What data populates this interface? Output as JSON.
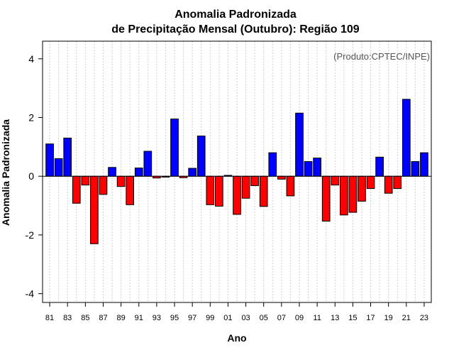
{
  "chart_data": {
    "type": "bar",
    "title": "Anomalia Padronizada",
    "subtitle": "de Precipitação Mensal (Outubro): Região 109",
    "xlabel": "Ano",
    "ylabel": "Anomalia Padronizada",
    "credit": "(Produto:CPTEC/INPE)",
    "ylim": [
      -4.3,
      4.6
    ],
    "yticks": [
      -4,
      -2,
      0,
      2,
      4
    ],
    "ytick_labels": [
      "-4",
      "-2",
      "0",
      "2",
      "4"
    ],
    "xtick_labels": [
      "81",
      "83",
      "85",
      "87",
      "89",
      "91",
      "93",
      "95",
      "97",
      "99",
      "01",
      "03",
      "05",
      "07",
      "09",
      "11",
      "13",
      "15",
      "17",
      "19",
      "21",
      "23"
    ],
    "grid": true,
    "categories": [
      "1981",
      "1982",
      "1983",
      "1984",
      "1985",
      "1986",
      "1987",
      "1988",
      "1989",
      "1990",
      "1991",
      "1992",
      "1993",
      "1994",
      "1995",
      "1996",
      "1997",
      "1998",
      "1999",
      "2000",
      "2001",
      "2002",
      "2003",
      "2004",
      "2005",
      "2006",
      "2007",
      "2008",
      "2009",
      "2010",
      "2011",
      "2012",
      "2013",
      "2014",
      "2015",
      "2016",
      "2017",
      "2018",
      "2019",
      "2020",
      "2021",
      "2022",
      "2023"
    ],
    "values": [
      1.1,
      0.6,
      1.3,
      -0.92,
      -0.3,
      -2.3,
      -0.62,
      0.3,
      -0.35,
      -0.97,
      0.28,
      0.85,
      -0.06,
      -0.03,
      1.95,
      -0.05,
      0.27,
      1.37,
      -0.97,
      -1.02,
      0.03,
      -1.3,
      -0.75,
      -0.32,
      -1.03,
      0.8,
      -0.1,
      -0.67,
      2.15,
      0.5,
      0.62,
      -1.53,
      -0.3,
      -1.32,
      -1.23,
      -0.85,
      -0.42,
      0.65,
      -0.58,
      -0.42,
      2.62,
      0.5,
      0.8
    ],
    "positive_color": "#0000ff",
    "negative_color": "#ff0000"
  }
}
